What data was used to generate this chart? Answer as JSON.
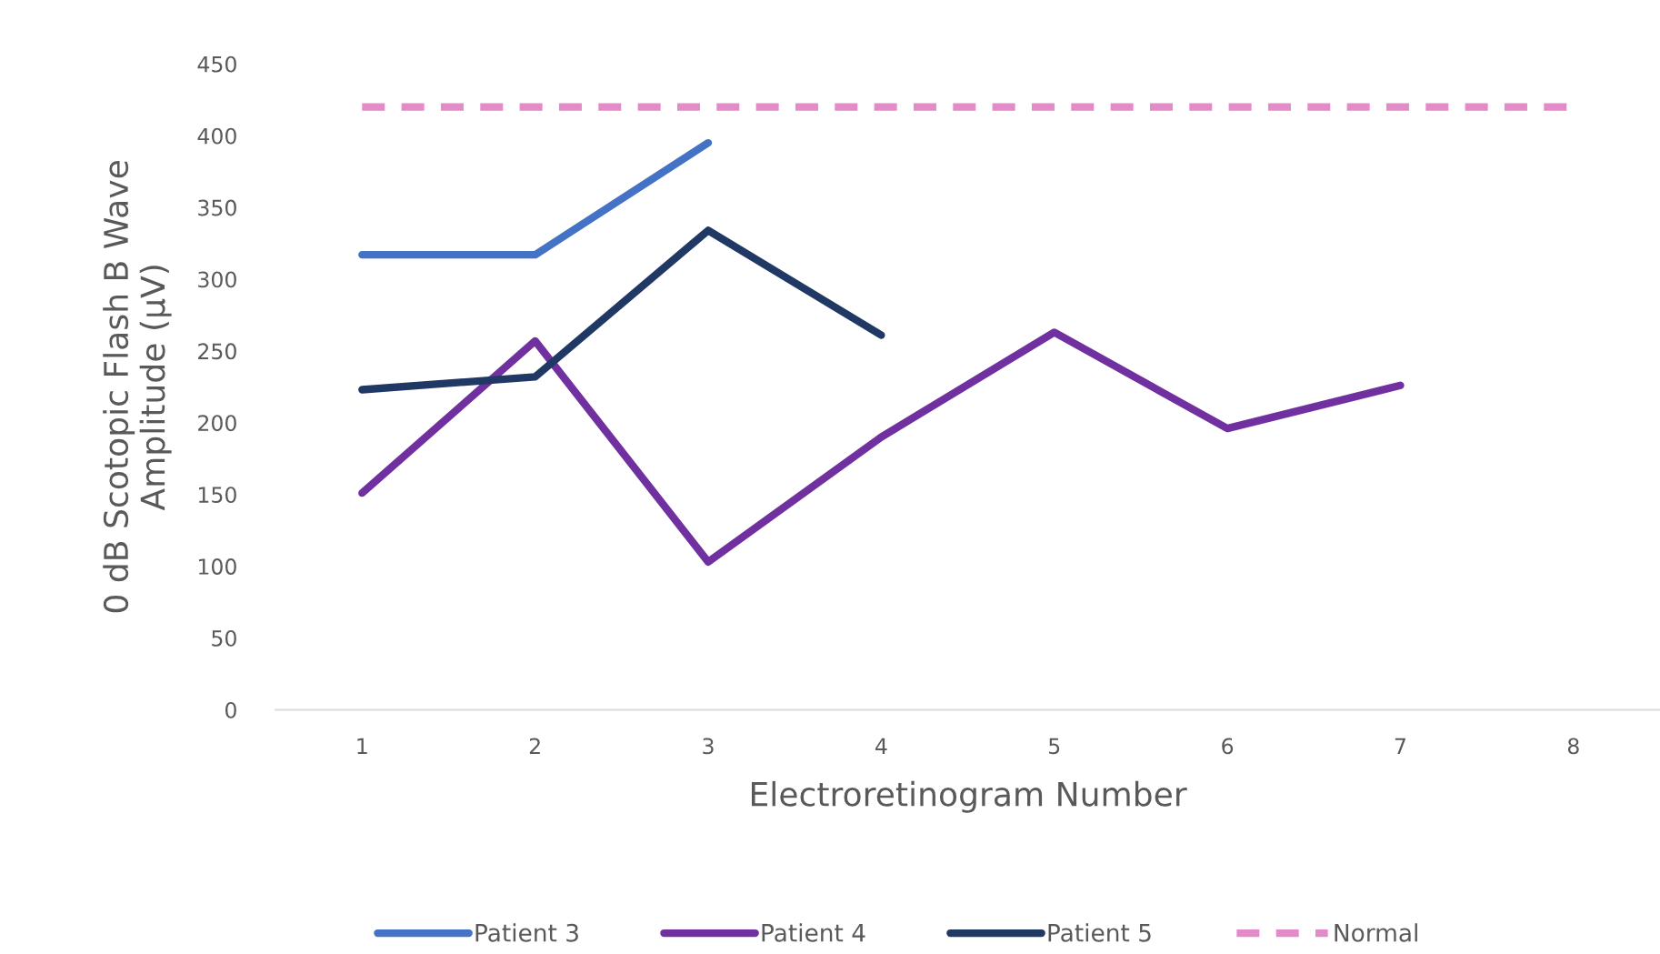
{
  "chart_data": {
    "type": "line",
    "xlabel": "Electroretinogram Number",
    "ylabel": "0 dB Scotopic Flash B Wave\nAmplitude (µV)",
    "categories": [
      "1",
      "2",
      "3",
      "4",
      "5",
      "6",
      "7",
      "8"
    ],
    "series": [
      {
        "name": "Patient 3",
        "color": "#4472c4",
        "values": [
          317,
          317,
          395,
          null,
          null,
          null,
          null,
          null
        ]
      },
      {
        "name": "Patient 4",
        "color": "#7030a0",
        "values": [
          151,
          257,
          103,
          190,
          263,
          196,
          226,
          null
        ]
      },
      {
        "name": "Patient 5",
        "color": "#203864",
        "values": [
          223,
          232,
          334,
          261,
          null,
          null,
          null,
          null
        ]
      },
      {
        "name": "Normal",
        "color": "#e38ac9",
        "line_style": "dashed",
        "values": [
          420,
          420,
          420,
          420,
          420,
          420,
          420,
          420
        ]
      }
    ],
    "ylim": [
      0,
      450
    ],
    "yticks": [
      0,
      50,
      100,
      150,
      200,
      250,
      300,
      350,
      400,
      450
    ],
    "grid": false,
    "legend": "bottom",
    "marker": "none",
    "line_style": "solid"
  }
}
